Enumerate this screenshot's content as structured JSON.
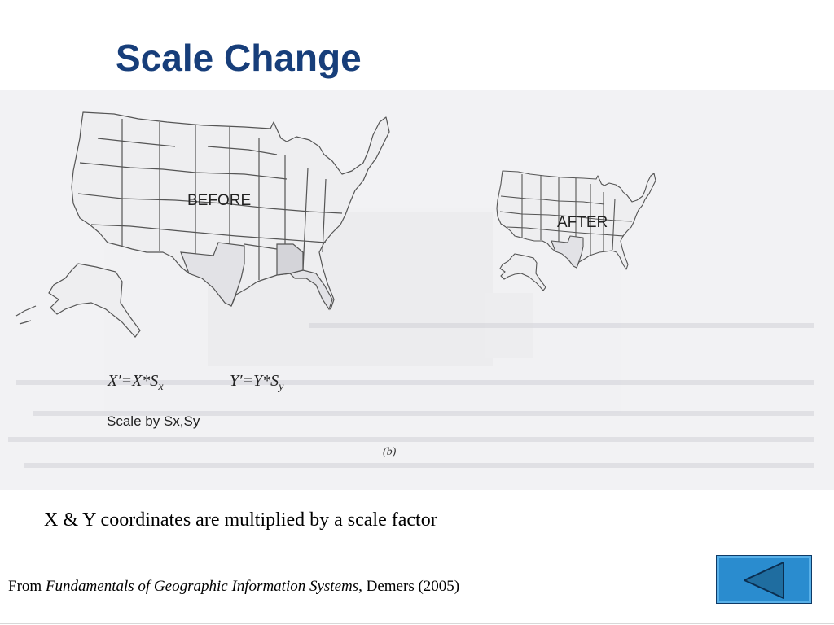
{
  "slide": {
    "title": "Scale Change",
    "body": "X & Y coordinates are multiplied by a scale factor",
    "citation": {
      "prefix": "From ",
      "book": "Fundamentals of Geographic Information Systems",
      "suffix": ", Demers (2005)"
    }
  },
  "figure": {
    "before_label": "BEFORE",
    "after_label": "AFTER",
    "formula_x": {
      "lhs": "X′=X*S",
      "sub": "x"
    },
    "formula_y": {
      "lhs": "Y′=Y*S",
      "sub": "y"
    },
    "caption": "Scale by Sx,Sy",
    "subfig_label": "(b)",
    "map_icon": "us-map-outline",
    "map_fill": "#eeeef0",
    "map_stroke": "#555555"
  },
  "navigation": {
    "back_icon": "triangle-left-icon",
    "button_color": "#2a8ccf",
    "arrow_color": "#1f6da0"
  }
}
